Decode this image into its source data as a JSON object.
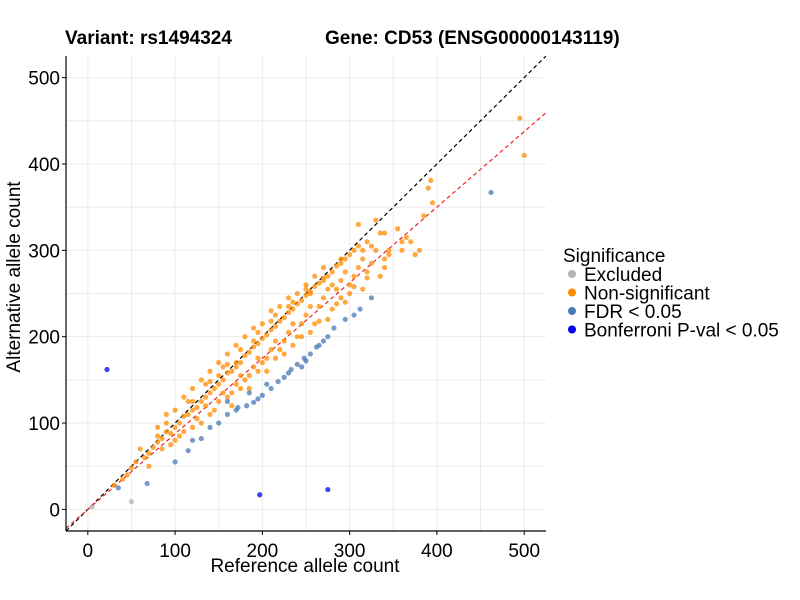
{
  "chart_data": {
    "type": "scatter",
    "title_left": "Variant: rs1494324",
    "title_right": "Gene: CD53 (ENSG00000143119)",
    "xlabel": "Reference allele count",
    "ylabel": "Alternative allele count",
    "xlim": [
      -25,
      525
    ],
    "ylim": [
      -25,
      525
    ],
    "x_ticks": [
      0,
      100,
      200,
      300,
      400,
      500
    ],
    "y_ticks": [
      0,
      100,
      200,
      300,
      400,
      500
    ],
    "legend": {
      "title": "Significance",
      "position": "right",
      "entries": [
        {
          "label": "Excluded",
          "color": "#b3b3b3"
        },
        {
          "label": "Non-significant",
          "color": "#ff8c00"
        },
        {
          "label": "FDR < 0.05",
          "color": "#4a7ab5"
        },
        {
          "label": "Bonferroni P-val < 0.05",
          "color": "#0000ee"
        }
      ]
    },
    "reference_lines": [
      {
        "name": "identity",
        "slope": 1.0,
        "intercept": 0,
        "color": "#000000",
        "dash": "dashed"
      },
      {
        "name": "fit",
        "slope": 0.875,
        "intercept": 0,
        "color": "#ee2222",
        "dash": "dashed"
      }
    ],
    "series": [
      {
        "name": "Excluded",
        "points": [
          [
            50,
            9
          ],
          [
            5,
            3
          ]
        ]
      },
      {
        "name": "FDR < 0.05",
        "points": [
          [
            462,
            367
          ],
          [
            35,
            25
          ],
          [
            68,
            30
          ],
          [
            100,
            55
          ],
          [
            115,
            68
          ],
          [
            130,
            82
          ],
          [
            140,
            95
          ],
          [
            150,
            100
          ],
          [
            160,
            110
          ],
          [
            170,
            115
          ],
          [
            182,
            120
          ],
          [
            190,
            124
          ],
          [
            200,
            132
          ],
          [
            210,
            140
          ],
          [
            218,
            148
          ],
          [
            225,
            153
          ],
          [
            233,
            162
          ],
          [
            240,
            168
          ],
          [
            248,
            175
          ],
          [
            255,
            180
          ],
          [
            262,
            188
          ],
          [
            270,
            195
          ],
          [
            282,
            210
          ],
          [
            295,
            220
          ],
          [
            312,
            232
          ],
          [
            325,
            245
          ],
          [
            160,
            125
          ],
          [
            185,
            135
          ],
          [
            205,
            145
          ],
          [
            230,
            158
          ],
          [
            120,
            80
          ],
          [
            245,
            165
          ],
          [
            265,
            190
          ],
          [
            195,
            128
          ],
          [
            172,
            118
          ],
          [
            250,
            172
          ],
          [
            275,
            200
          ],
          [
            305,
            225
          ]
        ]
      },
      {
        "name": "Bonferroni P-val < 0.05",
        "points": [
          [
            22,
            162
          ],
          [
            197,
            17
          ],
          [
            275,
            23
          ]
        ]
      },
      {
        "name": "Non-significant",
        "points": [
          [
            495,
            453
          ],
          [
            500,
            410
          ],
          [
            393,
            381
          ],
          [
            395,
            355
          ],
          [
            390,
            372
          ],
          [
            335,
            320
          ],
          [
            330,
            335
          ],
          [
            310,
            330
          ],
          [
            340,
            320
          ],
          [
            360,
            310
          ],
          [
            370,
            310
          ],
          [
            345,
            295
          ],
          [
            380,
            300
          ],
          [
            375,
            295
          ],
          [
            55,
            55
          ],
          [
            65,
            60
          ],
          [
            70,
            65
          ],
          [
            75,
            72
          ],
          [
            80,
            78
          ],
          [
            85,
            82
          ],
          [
            90,
            90
          ],
          [
            95,
            88
          ],
          [
            100,
            95
          ],
          [
            105,
            100
          ],
          [
            110,
            108
          ],
          [
            115,
            110
          ],
          [
            120,
            115
          ],
          [
            125,
            118
          ],
          [
            130,
            125
          ],
          [
            135,
            130
          ],
          [
            140,
            135
          ],
          [
            145,
            140
          ],
          [
            150,
            145
          ],
          [
            155,
            150
          ],
          [
            160,
            158
          ],
          [
            165,
            160
          ],
          [
            170,
            165
          ],
          [
            175,
            170
          ],
          [
            180,
            178
          ],
          [
            185,
            182
          ],
          [
            190,
            188
          ],
          [
            195,
            192
          ],
          [
            200,
            198
          ],
          [
            205,
            202
          ],
          [
            210,
            208
          ],
          [
            215,
            212
          ],
          [
            220,
            218
          ],
          [
            225,
            222
          ],
          [
            230,
            228
          ],
          [
            235,
            232
          ],
          [
            240,
            238
          ],
          [
            245,
            242
          ],
          [
            250,
            248
          ],
          [
            255,
            252
          ],
          [
            260,
            258
          ],
          [
            265,
            262
          ],
          [
            270,
            268
          ],
          [
            275,
            270
          ],
          [
            280,
            275
          ],
          [
            285,
            282
          ],
          [
            290,
            285
          ],
          [
            295,
            290
          ],
          [
            300,
            295
          ],
          [
            305,
            300
          ],
          [
            310,
            305
          ],
          [
            315,
            300
          ],
          [
            320,
            310
          ],
          [
            325,
            305
          ],
          [
            330,
            300
          ],
          [
            100,
            80
          ],
          [
            120,
            95
          ],
          [
            140,
            110
          ],
          [
            160,
            130
          ],
          [
            180,
            150
          ],
          [
            200,
            170
          ],
          [
            220,
            185
          ],
          [
            240,
            200
          ],
          [
            260,
            215
          ],
          [
            280,
            232
          ],
          [
            300,
            250
          ],
          [
            320,
            268
          ],
          [
            340,
            280
          ],
          [
            90,
            110
          ],
          [
            110,
            130
          ],
          [
            130,
            150
          ],
          [
            150,
            170
          ],
          [
            170,
            190
          ],
          [
            190,
            210
          ],
          [
            210,
            230
          ],
          [
            230,
            245
          ],
          [
            250,
            260
          ],
          [
            270,
            280
          ],
          [
            290,
            290
          ],
          [
            60,
            70
          ],
          [
            80,
            95
          ],
          [
            70,
            50
          ],
          [
            120,
            140
          ],
          [
            140,
            160
          ],
          [
            160,
            180
          ],
          [
            180,
            200
          ],
          [
            200,
            215
          ],
          [
            220,
            235
          ],
          [
            240,
            250
          ],
          [
            260,
            270
          ],
          [
            175,
            140
          ],
          [
            195,
            160
          ],
          [
            215,
            175
          ],
          [
            235,
            190
          ],
          [
            255,
            205
          ],
          [
            275,
            220
          ],
          [
            295,
            240
          ],
          [
            315,
            255
          ],
          [
            335,
            270
          ],
          [
            145,
            115
          ],
          [
            165,
            135
          ],
          [
            185,
            155
          ],
          [
            205,
            175
          ],
          [
            225,
            195
          ],
          [
            245,
            215
          ],
          [
            265,
            235
          ],
          [
            285,
            255
          ],
          [
            305,
            270
          ],
          [
            325,
            285
          ],
          [
            345,
            300
          ],
          [
            130,
            100
          ],
          [
            150,
            125
          ],
          [
            170,
            145
          ],
          [
            190,
            165
          ],
          [
            210,
            185
          ],
          [
            230,
            205
          ],
          [
            250,
            225
          ],
          [
            270,
            245
          ],
          [
            290,
            265
          ],
          [
            310,
            280
          ],
          [
            110,
            90
          ],
          [
            125,
            105
          ],
          [
            135,
            120
          ],
          [
            155,
            135
          ],
          [
            175,
            155
          ],
          [
            195,
            175
          ],
          [
            215,
            195
          ],
          [
            235,
            215
          ],
          [
            255,
            235
          ],
          [
            275,
            255
          ],
          [
            295,
            275
          ],
          [
            315,
            290
          ],
          [
            100,
            115
          ],
          [
            115,
            125
          ],
          [
            135,
            145
          ],
          [
            155,
            165
          ],
          [
            175,
            185
          ],
          [
            195,
            205
          ],
          [
            215,
            225
          ],
          [
            235,
            240
          ],
          [
            255,
            250
          ],
          [
            45,
            40
          ],
          [
            50,
            48
          ],
          [
            40,
            35
          ],
          [
            30,
            28
          ],
          [
            85,
            70
          ],
          [
            95,
            75
          ],
          [
            105,
            85
          ],
          [
            165,
            120
          ],
          [
            185,
            140
          ],
          [
            205,
            160
          ],
          [
            225,
            180
          ],
          [
            245,
            200
          ],
          [
            265,
            218
          ],
          [
            285,
            238
          ],
          [
            305,
            258
          ],
          [
            280,
            260
          ],
          [
            290,
            245
          ],
          [
            300,
            260
          ],
          [
            320,
            275
          ],
          [
            340,
            290
          ],
          [
            360,
            300
          ],
          [
            355,
            325
          ],
          [
            365,
            315
          ],
          [
            385,
            340
          ],
          [
            80,
            85
          ],
          [
            90,
            100
          ],
          [
            150,
            155
          ],
          [
            170,
            170
          ],
          [
            190,
            195
          ],
          [
            210,
            218
          ],
          [
            230,
            235
          ],
          [
            250,
            255
          ],
          [
            270,
            265
          ],
          [
            120,
            125
          ],
          [
            140,
            148
          ],
          [
            160,
            168
          ]
        ]
      }
    ]
  }
}
